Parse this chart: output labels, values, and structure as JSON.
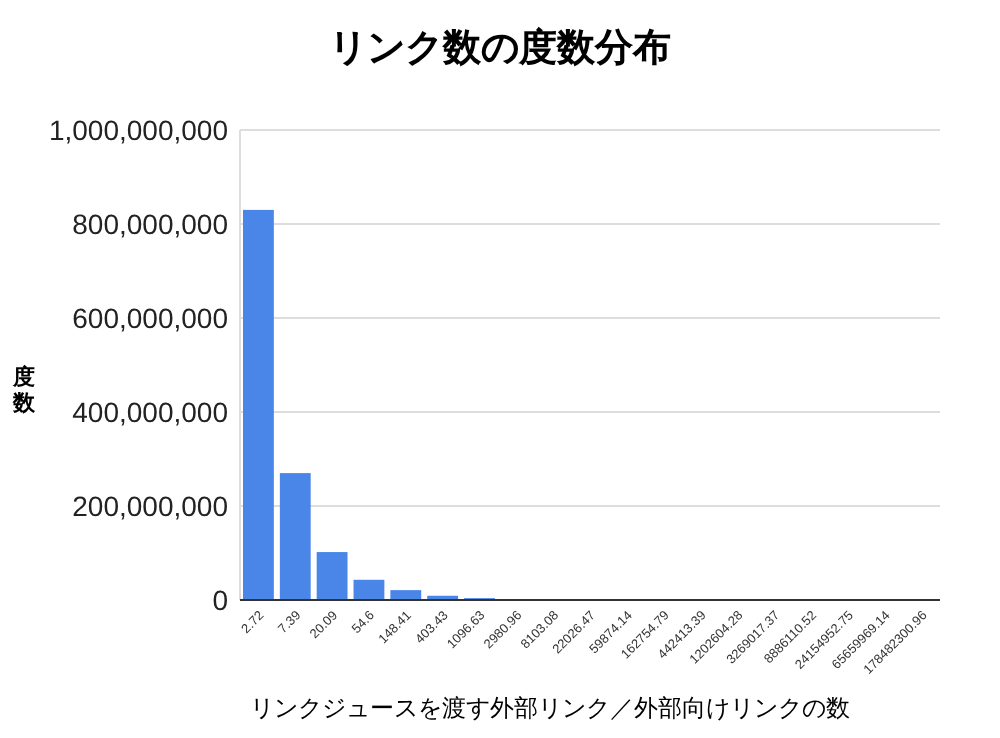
{
  "chart_data": {
    "type": "bar",
    "title": "リンク数の度数分布",
    "xlabel": "リンクジュースを渡す外部リンク／外部向けリンクの数",
    "ylabel": "度数",
    "categories": [
      "2.72",
      "7.39",
      "20.09",
      "54.6",
      "148.41",
      "403.43",
      "1096.63",
      "2980.96",
      "8103.08",
      "22026.47",
      "59874.14",
      "162754.79",
      "442413.39",
      "1202604.28",
      "3269017.37",
      "8886110.52",
      "24154952.75",
      "65659969.14",
      "178482300.96"
    ],
    "values": [
      830000000,
      270000000,
      102000000,
      43000000,
      21000000,
      9000000,
      4000000,
      2000000,
      0,
      0,
      0,
      0,
      0,
      0,
      0,
      0,
      0,
      0,
      0
    ],
    "color": "#4a86e8",
    "ylim": [
      0,
      1000000000
    ],
    "yticks": [
      {
        "value": 0,
        "label": "0"
      },
      {
        "value": 200000000,
        "label": "200,000,000"
      },
      {
        "value": 400000000,
        "label": "400,000,000"
      },
      {
        "value": 600000000,
        "label": "600,000,000"
      },
      {
        "value": 800000000,
        "label": "800,000,000"
      },
      {
        "value": 1000000000,
        "label": "1,000,000,000"
      }
    ],
    "grid": "y"
  }
}
